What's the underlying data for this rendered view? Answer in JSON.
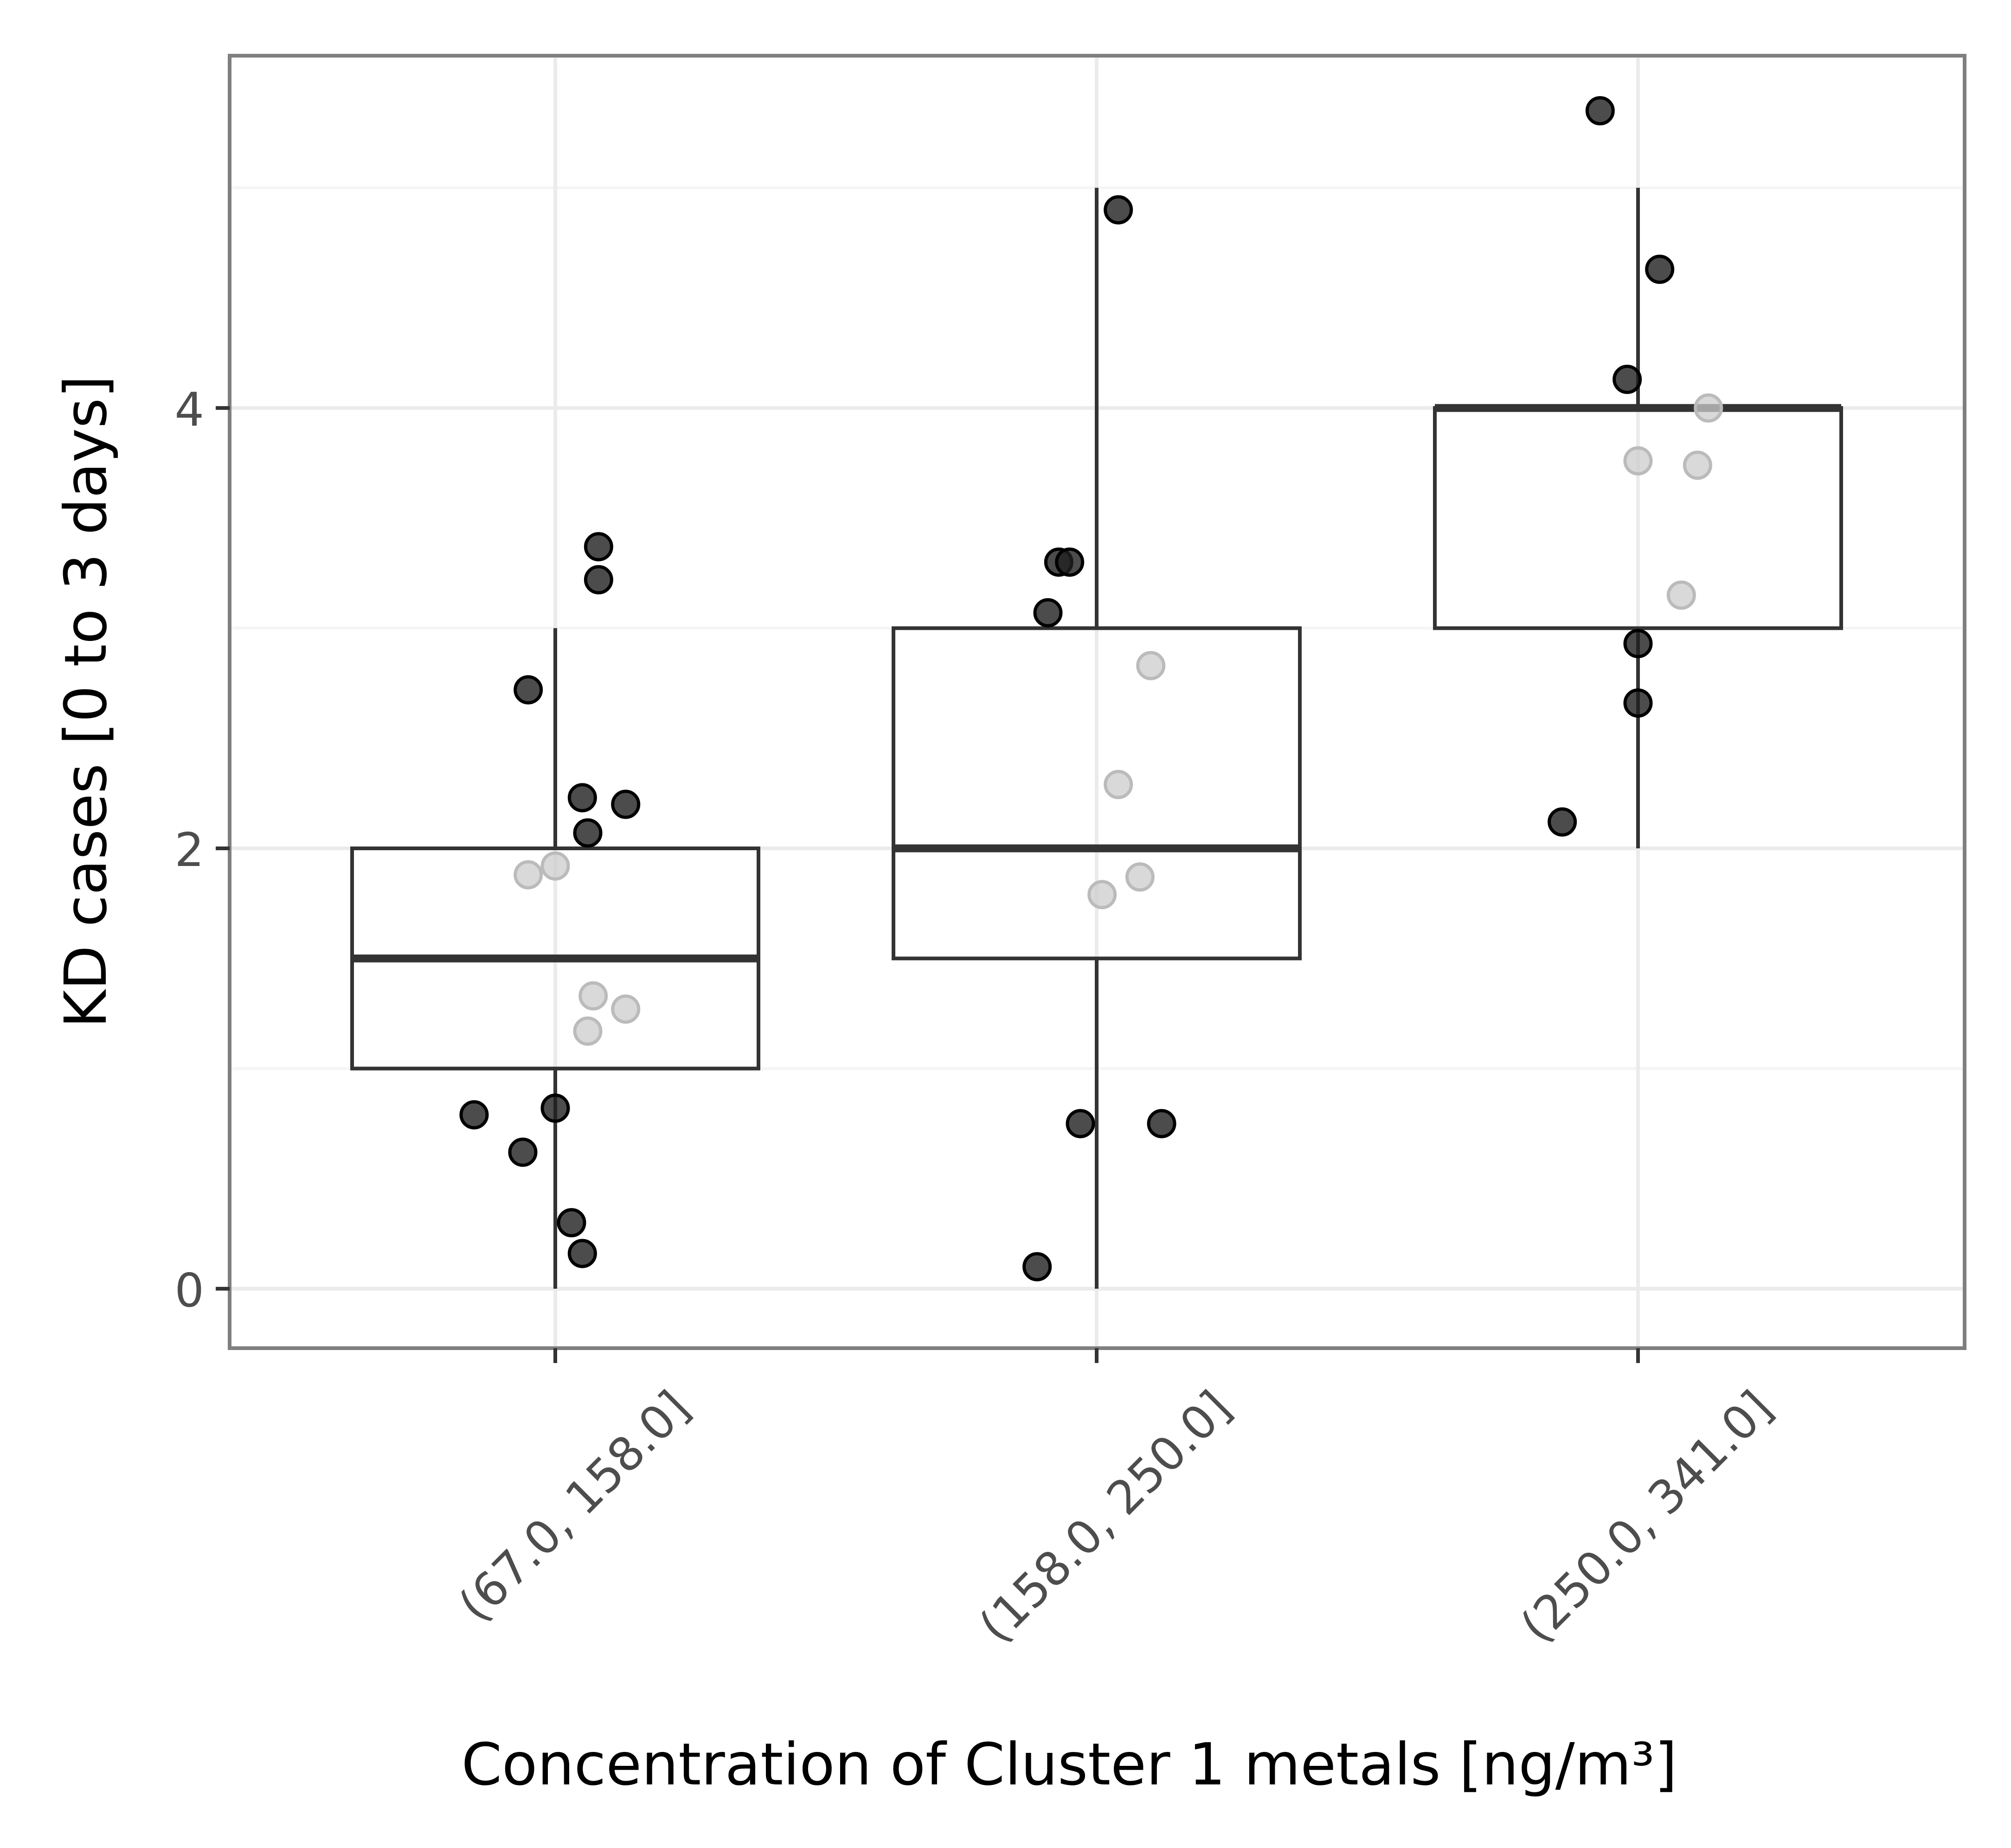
{
  "chart_data": {
    "type": "box",
    "title": "",
    "xlabel": "Concentration of Cluster 1 metals [ng/m³]",
    "ylabel": "KD cases [0 to 3 days]",
    "ylim": [
      -0.27,
      5.6
    ],
    "yticks": [
      0,
      2,
      4
    ],
    "grid": true,
    "legend": "none",
    "colors": {
      "box_line": "#333333",
      "point_dark": "#1f1f1f",
      "point_light": "#c8c8c8",
      "panel_border": "#7f7f7f",
      "grid": "#ebebeb"
    },
    "categories": [
      "(67.0, 158.0]",
      "(158.0, 250.0]",
      "(250.0, 341.0]"
    ],
    "boxes": [
      {
        "category": "(67.0, 158.0]",
        "whisker_low": 0,
        "q1": 1,
        "median": 1.5,
        "q3": 2,
        "whisker_high": 3
      },
      {
        "category": "(158.0, 250.0]",
        "whisker_low": 0,
        "q1": 1.5,
        "median": 2,
        "q3": 3,
        "whisker_high": 5
      },
      {
        "category": "(250.0, 341.0]",
        "whisker_low": 2,
        "q1": 3,
        "median": 4,
        "q3": 4,
        "whisker_high": 5
      }
    ],
    "points": [
      {
        "category_index": 0,
        "x": 0.08,
        "y": 3.37,
        "shade": "dark"
      },
      {
        "category_index": 0,
        "x": 0.08,
        "y": 3.22,
        "shade": "dark"
      },
      {
        "category_index": 0,
        "x": -0.05,
        "y": 2.72,
        "shade": "dark"
      },
      {
        "category_index": 0,
        "x": 0.05,
        "y": 2.23,
        "shade": "dark"
      },
      {
        "category_index": 0,
        "x": 0.13,
        "y": 2.2,
        "shade": "dark"
      },
      {
        "category_index": 0,
        "x": 0.06,
        "y": 2.07,
        "shade": "dark"
      },
      {
        "category_index": 0,
        "x": -0.05,
        "y": 1.88,
        "shade": "light"
      },
      {
        "category_index": 0,
        "x": 0.0,
        "y": 1.92,
        "shade": "light"
      },
      {
        "category_index": 0,
        "x": 0.07,
        "y": 1.33,
        "shade": "light"
      },
      {
        "category_index": 0,
        "x": 0.13,
        "y": 1.27,
        "shade": "light"
      },
      {
        "category_index": 0,
        "x": 0.06,
        "y": 1.17,
        "shade": "light"
      },
      {
        "category_index": 0,
        "x": -0.15,
        "y": 0.79,
        "shade": "dark"
      },
      {
        "category_index": 0,
        "x": 0.0,
        "y": 0.82,
        "shade": "dark"
      },
      {
        "category_index": 0,
        "x": -0.06,
        "y": 0.62,
        "shade": "dark"
      },
      {
        "category_index": 0,
        "x": 0.03,
        "y": 0.3,
        "shade": "dark"
      },
      {
        "category_index": 0,
        "x": 0.05,
        "y": 0.16,
        "shade": "dark"
      },
      {
        "category_index": 1,
        "x": 0.04,
        "y": 4.9,
        "shade": "dark"
      },
      {
        "category_index": 1,
        "x": -0.07,
        "y": 3.3,
        "shade": "dark"
      },
      {
        "category_index": 1,
        "x": -0.05,
        "y": 3.3,
        "shade": "dark"
      },
      {
        "category_index": 1,
        "x": -0.09,
        "y": 3.07,
        "shade": "dark"
      },
      {
        "category_index": 1,
        "x": 0.1,
        "y": 2.83,
        "shade": "light"
      },
      {
        "category_index": 1,
        "x": 0.04,
        "y": 2.29,
        "shade": "light"
      },
      {
        "category_index": 1,
        "x": 0.08,
        "y": 1.87,
        "shade": "light"
      },
      {
        "category_index": 1,
        "x": 0.01,
        "y": 1.79,
        "shade": "light"
      },
      {
        "category_index": 1,
        "x": -0.03,
        "y": 0.75,
        "shade": "dark"
      },
      {
        "category_index": 1,
        "x": 0.12,
        "y": 0.75,
        "shade": "dark"
      },
      {
        "category_index": 1,
        "x": -0.11,
        "y": 0.1,
        "shade": "dark"
      },
      {
        "category_index": 2,
        "x": -0.07,
        "y": 5.35,
        "shade": "dark"
      },
      {
        "category_index": 2,
        "x": 0.04,
        "y": 4.63,
        "shade": "dark"
      },
      {
        "category_index": 2,
        "x": -0.02,
        "y": 4.13,
        "shade": "dark"
      },
      {
        "category_index": 2,
        "x": 0.13,
        "y": 4.0,
        "shade": "light"
      },
      {
        "category_index": 2,
        "x": 0.0,
        "y": 3.76,
        "shade": "light"
      },
      {
        "category_index": 2,
        "x": 0.11,
        "y": 3.74,
        "shade": "light"
      },
      {
        "category_index": 2,
        "x": 0.08,
        "y": 3.15,
        "shade": "light"
      },
      {
        "category_index": 2,
        "x": 0.0,
        "y": 2.93,
        "shade": "dark"
      },
      {
        "category_index": 2,
        "x": 0.0,
        "y": 2.66,
        "shade": "dark"
      },
      {
        "category_index": 2,
        "x": -0.14,
        "y": 2.12,
        "shade": "dark"
      }
    ]
  }
}
